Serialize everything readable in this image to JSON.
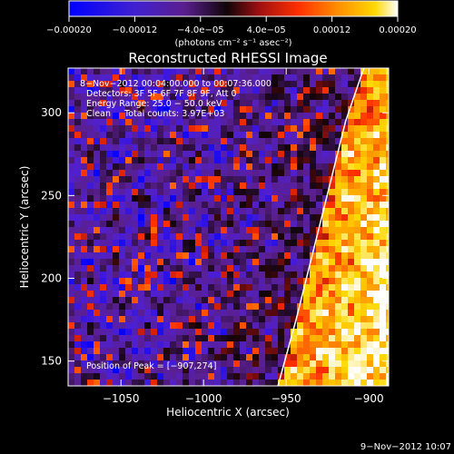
{
  "chart_data": {
    "type": "heatmap",
    "title": "Reconstructed RHESSI Image",
    "xlabel": "Heliocentric X (arcsec)",
    "ylabel": "Heliocentric Y (arcsec)",
    "xlim": [
      -1082,
      -888
    ],
    "ylim": [
      135,
      327
    ],
    "xticks": [
      -1050,
      -1000,
      -950,
      -900
    ],
    "xtick_labels": [
      "−1050",
      "−1000",
      "−950",
      "−900"
    ],
    "yticks": [
      150,
      200,
      250,
      300
    ],
    "ytick_labels": [
      "150",
      "200",
      "250",
      "300"
    ],
    "colorbar": {
      "range": [
        -0.0002,
        0.0002
      ],
      "ticks": [
        -0.0002,
        -0.00012,
        -4e-05,
        4e-05,
        0.00012,
        0.0002
      ],
      "tick_labels": [
        "−0.00020",
        "−0.00012",
        "−4.0e−05",
        "4.0e−05",
        "0.00012",
        "0.00020"
      ],
      "unit_label": "(photons cm⁻² s⁻¹ asec⁻²)",
      "colormap": [
        "#0000ff",
        "#5020d0",
        "#5a1f8f",
        "#100408",
        "#a01010",
        "#ff3000",
        "#ff9000",
        "#ffd800",
        "#ffffff"
      ]
    },
    "annotation_lines": [
      "8−Nov−2012 00:04:00.000 to 00:07:36.000",
      "Detectors: 3F 5F 6F 7F 8F 9F, Att 0",
      "Energy Range: 25.0 − 50.0 keV",
      "Clean     Total counts: 3.97E+03"
    ],
    "peak_label": "Position of Peak = [−907,274]",
    "limb_curve": {
      "x": [
        -955,
        -944,
        -934,
        -924,
        -914,
        -903
      ],
      "y": [
        135,
        175,
        215,
        255,
        295,
        327
      ]
    },
    "grid": false
  },
  "footer_timestamp": "9−Nov−2012 10:07"
}
